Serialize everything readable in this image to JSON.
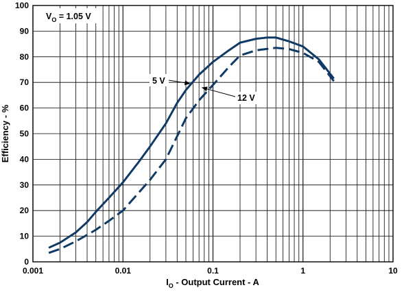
{
  "chart_data": {
    "type": "line",
    "x_scale": "log",
    "xlim": [
      0.001,
      10
    ],
    "ylim": [
      0,
      100
    ],
    "grid": true,
    "xlabel": {
      "main": "I",
      "sub": "O",
      "rest": " - Output Current - A"
    },
    "ylabel": "Efficiency - %",
    "x_ticks": [
      {
        "value": 0.001,
        "label": "0.001"
      },
      {
        "value": 0.01,
        "label": "0.01"
      },
      {
        "value": 0.1,
        "label": "0.1"
      },
      {
        "value": 1,
        "label": "1"
      },
      {
        "value": 10,
        "label": "10"
      }
    ],
    "y_ticks": [
      0,
      10,
      20,
      30,
      40,
      50,
      60,
      70,
      80,
      90,
      100
    ],
    "annotation": {
      "main": "V",
      "sub": "O",
      "rest": " = 1.05 V"
    },
    "series": [
      {
        "name": "5 V",
        "style": "solid",
        "color": "#0f3a66",
        "points": [
          [
            0.0015,
            5.5
          ],
          [
            0.002,
            7.5
          ],
          [
            0.003,
            11.5
          ],
          [
            0.004,
            15.5
          ],
          [
            0.005,
            19.5
          ],
          [
            0.007,
            25
          ],
          [
            0.01,
            31
          ],
          [
            0.015,
            39
          ],
          [
            0.02,
            45
          ],
          [
            0.03,
            54
          ],
          [
            0.04,
            62
          ],
          [
            0.05,
            67
          ],
          [
            0.07,
            73
          ],
          [
            0.1,
            78
          ],
          [
            0.15,
            82.5
          ],
          [
            0.2,
            85.5
          ],
          [
            0.3,
            87
          ],
          [
            0.4,
            87.5
          ],
          [
            0.5,
            87.5
          ],
          [
            0.7,
            86
          ],
          [
            1,
            84
          ],
          [
            1.5,
            79
          ],
          [
            2.2,
            71.5
          ]
        ]
      },
      {
        "name": "12 V",
        "style": "dashed",
        "color": "#0f3a66",
        "points": [
          [
            0.0015,
            3.5
          ],
          [
            0.002,
            5
          ],
          [
            0.003,
            8
          ],
          [
            0.004,
            10.5
          ],
          [
            0.005,
            12.5
          ],
          [
            0.007,
            16
          ],
          [
            0.01,
            20
          ],
          [
            0.015,
            27
          ],
          [
            0.02,
            32
          ],
          [
            0.03,
            40
          ],
          [
            0.04,
            49
          ],
          [
            0.05,
            56
          ],
          [
            0.07,
            63
          ],
          [
            0.1,
            69
          ],
          [
            0.15,
            76
          ],
          [
            0.2,
            80.5
          ],
          [
            0.3,
            82.5
          ],
          [
            0.5,
            83.5
          ],
          [
            0.7,
            83
          ],
          [
            1,
            81.5
          ],
          [
            1.5,
            78
          ],
          [
            2.2,
            70.5
          ]
        ]
      }
    ],
    "series_labels": [
      {
        "text": "5 V",
        "arrow_to": [
          0.056,
          69.5
        ]
      },
      {
        "text": "12 V",
        "arrow_to": [
          0.075,
          68
        ]
      }
    ]
  }
}
